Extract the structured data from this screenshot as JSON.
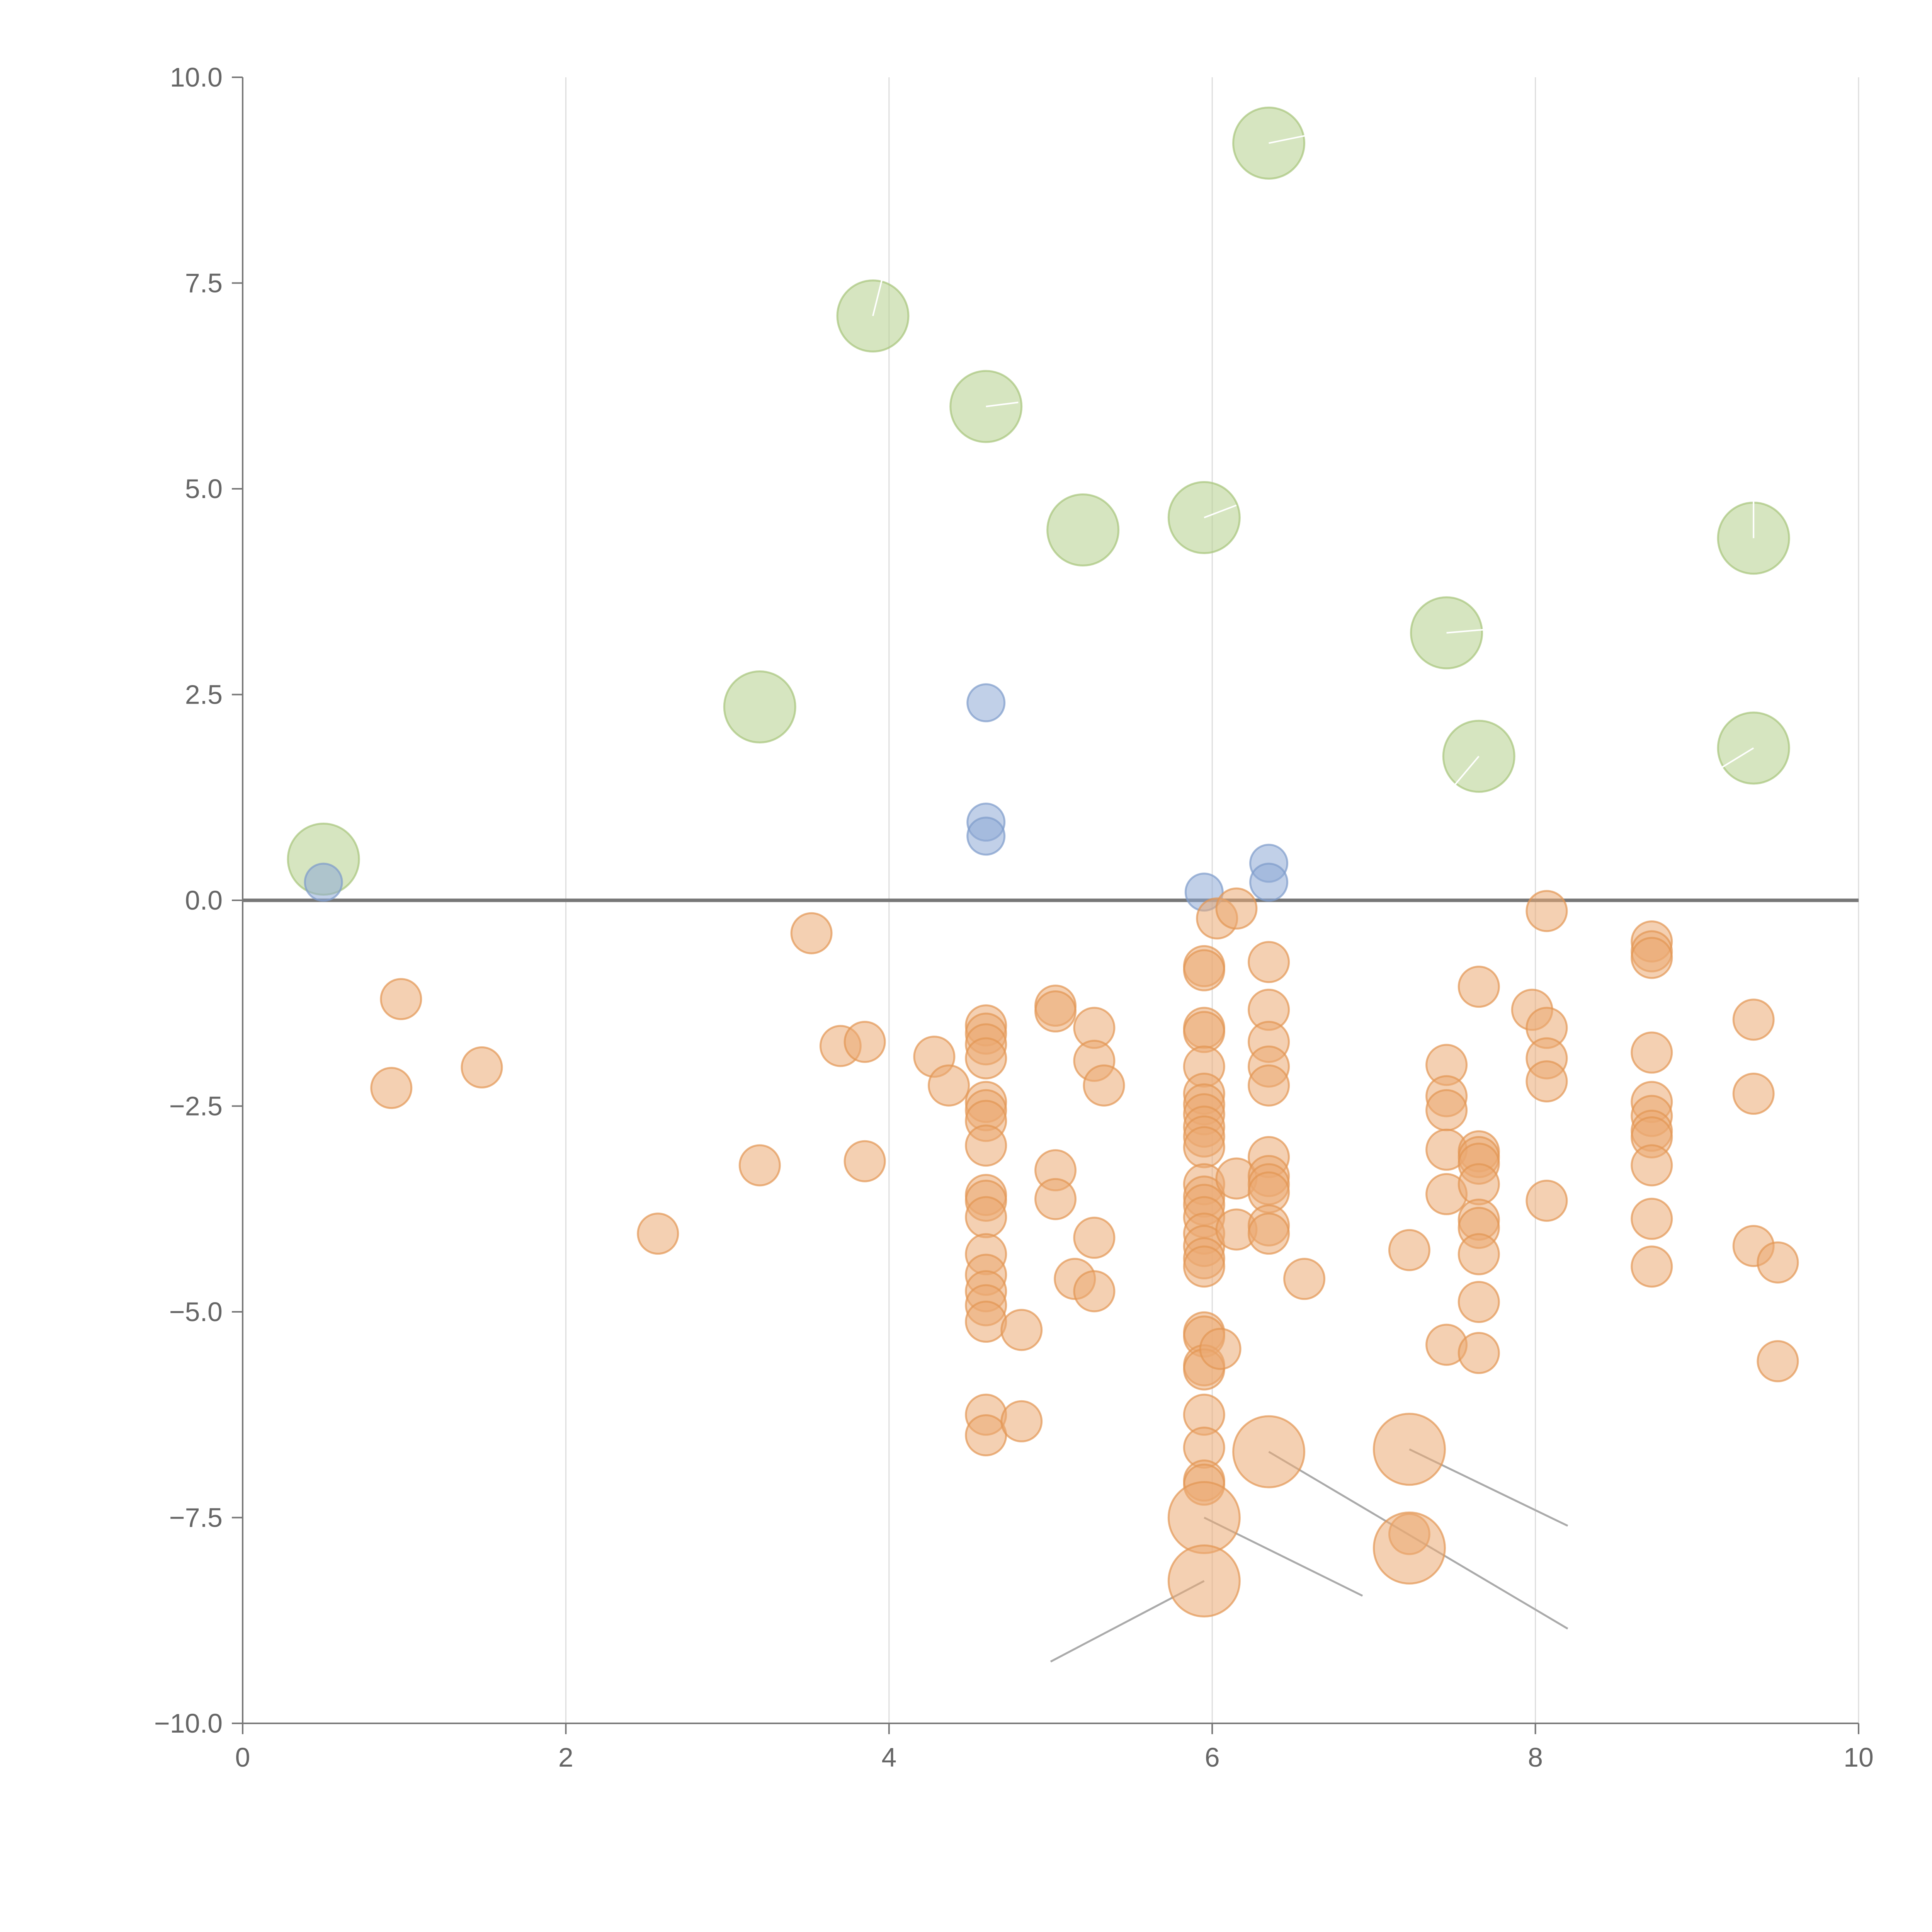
{
  "chart_data": {
    "type": "scatter",
    "title": "",
    "xlabel": "",
    "ylabel": "",
    "xlim": [
      0,
      10
    ],
    "ylim": [
      -10,
      10
    ],
    "x_ticks": [
      0,
      2,
      4,
      6,
      8,
      10
    ],
    "x_tick_labels": [
      "0",
      "2",
      "4",
      "6",
      "8",
      "10"
    ],
    "y_ticks": [
      10,
      7.5,
      5,
      2.5,
      0,
      -2.5,
      -5,
      -7.5,
      -10
    ],
    "y_tick_labels": [
      "10.0",
      "7.5",
      "5.0",
      "2.5",
      "0.0",
      "−2.5",
      "−5.0",
      "−7.5",
      "−10.0"
    ],
    "grid": "vertical",
    "zero_line": true,
    "series": [
      {
        "name": "green",
        "color": "#b5d08c",
        "stroke": "#a6c47a",
        "size": "large",
        "points": [
          [
            0.5,
            0.5
          ],
          [
            3.2,
            2.35
          ],
          [
            3.9,
            7.1
          ],
          [
            4.6,
            6.0
          ],
          [
            5.2,
            4.5
          ],
          [
            5.95,
            4.65
          ],
          [
            6.35,
            9.2
          ],
          [
            7.45,
            3.25
          ],
          [
            7.65,
            1.75
          ],
          [
            9.35,
            4.4
          ],
          [
            9.35,
            1.85
          ]
        ],
        "leaders": [
          [
            [
              3.9,
              7.1
            ],
            [
              3.97,
              7.65
            ]
          ],
          [
            [
              4.6,
              6.0
            ],
            [
              4.8,
              6.05
            ]
          ],
          [
            [
              5.95,
              4.65
            ],
            [
              6.15,
              4.8
            ]
          ],
          [
            [
              6.35,
              9.2
            ],
            [
              6.6,
              9.3
            ]
          ],
          [
            [
              7.45,
              3.25
            ],
            [
              7.75,
              3.3
            ]
          ],
          [
            [
              7.65,
              1.75
            ],
            [
              7.5,
              1.4
            ]
          ],
          [
            [
              9.35,
              4.4
            ],
            [
              9.35,
              4.95
            ]
          ],
          [
            [
              9.35,
              1.85
            ],
            [
              9.1,
              1.55
            ]
          ]
        ]
      },
      {
        "name": "blue",
        "color": "#8eaad6",
        "stroke": "#7e9bcb",
        "size": "small",
        "points": [
          [
            0.5,
            0.22
          ],
          [
            4.6,
            2.4
          ],
          [
            4.6,
            0.95
          ],
          [
            4.6,
            0.78
          ],
          [
            5.95,
            0.1
          ],
          [
            6.35,
            0.45
          ],
          [
            6.35,
            0.22
          ]
        ]
      },
      {
        "name": "orange",
        "color": "#ebaa72",
        "stroke": "#e29552",
        "size": "medium",
        "points": [
          [
            0.98,
            -1.2
          ],
          [
            0.92,
            -2.28
          ],
          [
            1.48,
            -2.03
          ],
          [
            2.57,
            -4.05
          ],
          [
            3.2,
            -3.22
          ],
          [
            3.52,
            -0.4
          ],
          [
            3.7,
            -1.77
          ],
          [
            3.85,
            -1.72
          ],
          [
            3.85,
            -3.17
          ],
          [
            4.28,
            -1.9
          ],
          [
            4.37,
            -2.25
          ],
          [
            4.6,
            -1.52
          ],
          [
            4.6,
            -1.62
          ],
          [
            4.6,
            -1.75
          ],
          [
            4.6,
            -1.92
          ],
          [
            4.6,
            -2.45
          ],
          [
            4.6,
            -2.55
          ],
          [
            4.6,
            -2.68
          ],
          [
            4.6,
            -2.98
          ],
          [
            4.6,
            -3.58
          ],
          [
            4.6,
            -3.65
          ],
          [
            4.6,
            -3.85
          ],
          [
            4.6,
            -4.3
          ],
          [
            4.6,
            -4.55
          ],
          [
            4.6,
            -4.75
          ],
          [
            4.6,
            -4.92
          ],
          [
            4.6,
            -5.12
          ],
          [
            4.6,
            -6.25
          ],
          [
            4.6,
            -6.5
          ],
          [
            4.82,
            -5.22
          ],
          [
            4.82,
            -6.33
          ],
          [
            5.03,
            -1.28
          ],
          [
            5.03,
            -1.35
          ],
          [
            5.03,
            -3.28
          ],
          [
            5.03,
            -3.63
          ],
          [
            5.15,
            -4.6
          ],
          [
            5.27,
            -1.55
          ],
          [
            5.27,
            -1.95
          ],
          [
            5.27,
            -4.1
          ],
          [
            5.27,
            -4.75
          ],
          [
            5.33,
            -2.25
          ],
          [
            5.95,
            -0.8
          ],
          [
            5.95,
            -0.85
          ],
          [
            5.95,
            -1.55
          ],
          [
            5.95,
            -1.6
          ],
          [
            5.95,
            -2.02
          ],
          [
            5.95,
            -2.35
          ],
          [
            5.95,
            -2.48
          ],
          [
            5.95,
            -2.6
          ],
          [
            5.95,
            -2.75
          ],
          [
            5.95,
            -2.87
          ],
          [
            5.95,
            -3.0
          ],
          [
            5.95,
            -3.45
          ],
          [
            5.95,
            -3.6
          ],
          [
            5.95,
            -3.7
          ],
          [
            5.95,
            -3.85
          ],
          [
            5.95,
            -4.05
          ],
          [
            5.95,
            -4.2
          ],
          [
            5.95,
            -4.35
          ],
          [
            5.95,
            -4.45
          ],
          [
            5.95,
            -5.25
          ],
          [
            5.95,
            -5.3
          ],
          [
            5.95,
            -5.65
          ],
          [
            5.95,
            -5.7
          ],
          [
            5.95,
            -6.25
          ],
          [
            5.95,
            -6.65
          ],
          [
            5.95,
            -7.05
          ],
          [
            5.95,
            -7.1
          ],
          [
            6.03,
            -0.22
          ],
          [
            6.05,
            -5.45
          ],
          [
            6.15,
            -0.1
          ],
          [
            6.15,
            -3.38
          ],
          [
            6.15,
            -4.0
          ],
          [
            6.35,
            -0.75
          ],
          [
            6.35,
            -1.33
          ],
          [
            6.35,
            -1.72
          ],
          [
            6.35,
            -2.02
          ],
          [
            6.35,
            -2.25
          ],
          [
            6.35,
            -3.12
          ],
          [
            6.35,
            -3.35
          ],
          [
            6.35,
            -3.45
          ],
          [
            6.35,
            -3.55
          ],
          [
            6.35,
            -3.95
          ],
          [
            6.35,
            -4.05
          ],
          [
            6.57,
            -4.6
          ],
          [
            7.22,
            -4.25
          ],
          [
            7.22,
            -7.7
          ],
          [
            7.45,
            -2.0
          ],
          [
            7.45,
            -2.38
          ],
          [
            7.45,
            -2.55
          ],
          [
            7.45,
            -3.03
          ],
          [
            7.45,
            -3.57
          ],
          [
            7.45,
            -5.4
          ],
          [
            7.65,
            -1.05
          ],
          [
            7.65,
            -3.05
          ],
          [
            7.65,
            -3.12
          ],
          [
            7.65,
            -3.2
          ],
          [
            7.65,
            -3.45
          ],
          [
            7.65,
            -3.88
          ],
          [
            7.65,
            -3.98
          ],
          [
            7.65,
            -4.3
          ],
          [
            7.65,
            -4.88
          ],
          [
            7.65,
            -5.5
          ],
          [
            7.98,
            -1.33
          ],
          [
            8.07,
            -0.13
          ],
          [
            8.07,
            -1.55
          ],
          [
            8.07,
            -1.92
          ],
          [
            8.07,
            -2.2
          ],
          [
            8.07,
            -3.65
          ],
          [
            8.72,
            -0.5
          ],
          [
            8.72,
            -0.62
          ],
          [
            8.72,
            -0.7
          ],
          [
            8.72,
            -1.85
          ],
          [
            8.72,
            -2.45
          ],
          [
            8.72,
            -2.62
          ],
          [
            8.72,
            -2.8
          ],
          [
            8.72,
            -2.88
          ],
          [
            8.72,
            -3.22
          ],
          [
            8.72,
            -3.87
          ],
          [
            8.72,
            -4.45
          ],
          [
            9.35,
            -1.45
          ],
          [
            9.35,
            -2.35
          ],
          [
            9.35,
            -4.2
          ],
          [
            9.5,
            -4.4
          ],
          [
            9.5,
            -5.6
          ]
        ]
      },
      {
        "name": "orange-large",
        "color": "#ebaa72",
        "stroke": "#e29552",
        "size": "large",
        "points": [
          [
            5.95,
            -7.5
          ],
          [
            5.95,
            -8.27
          ],
          [
            6.35,
            -6.7
          ],
          [
            7.22,
            -6.67
          ],
          [
            7.22,
            -7.87
          ]
        ],
        "leaders": [
          [
            [
              5.95,
              -8.27
            ],
            [
              5.0,
              -9.25
            ]
          ],
          [
            [
              5.95,
              -7.5
            ],
            [
              6.93,
              -8.45
            ]
          ],
          [
            [
              6.35,
              -6.7
            ],
            [
              8.2,
              -8.85
            ]
          ],
          [
            [
              7.22,
              -6.67
            ],
            [
              8.2,
              -7.6
            ]
          ]
        ]
      }
    ]
  }
}
